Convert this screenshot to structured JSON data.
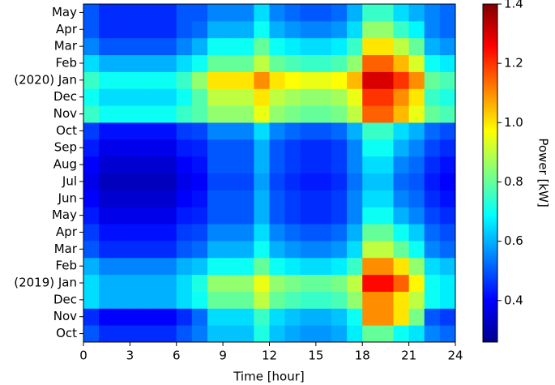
{
  "chart_data": {
    "type": "heatmap",
    "colormap": "jet",
    "xlabel": "Time [hour]",
    "xlim": [
      0,
      24
    ],
    "xticks": [
      0,
      3,
      6,
      9,
      12,
      15,
      18,
      21,
      24
    ],
    "categories": [
      "Oct",
      "Nov",
      "Dec",
      "(2019) Jan",
      "Feb",
      "Mar",
      "Apr",
      "May",
      "Jun",
      "Jul",
      "Aug",
      "Sep",
      "Oct",
      "Nov",
      "Dec",
      "(2020) Jan",
      "Feb",
      "Mar",
      "Apr",
      "May"
    ],
    "colorbar_label": "Power [kW]",
    "zlim": [
      0.26,
      1.4
    ],
    "zticks": [
      0.4,
      0.6,
      0.8,
      {
        "value": 1,
        "label": "1.0"
      },
      1.2,
      1.4
    ],
    "values": [
      [
        0.5,
        0.45,
        0.45,
        0.45,
        0.45,
        0.45,
        0.5,
        0.54,
        0.62,
        0.62,
        0.62,
        0.72,
        0.62,
        0.59,
        0.57,
        0.57,
        0.59,
        0.67,
        0.8,
        0.8,
        0.7,
        0.66,
        0.55,
        0.52
      ],
      [
        0.45,
        0.4,
        0.4,
        0.4,
        0.4,
        0.4,
        0.45,
        0.52,
        0.65,
        0.65,
        0.65,
        0.75,
        0.65,
        0.62,
        0.6,
        0.6,
        0.62,
        0.7,
        1.1,
        1.1,
        1.0,
        0.82,
        0.5,
        0.47
      ],
      [
        0.65,
        0.6,
        0.6,
        0.6,
        0.6,
        0.6,
        0.65,
        0.7,
        0.8,
        0.8,
        0.8,
        0.9,
        0.8,
        0.77,
        0.75,
        0.75,
        0.77,
        0.85,
        1.1,
        1.1,
        1.0,
        0.9,
        0.7,
        0.67
      ],
      [
        0.65,
        0.6,
        0.6,
        0.6,
        0.6,
        0.6,
        0.65,
        0.72,
        0.85,
        0.85,
        0.85,
        0.95,
        0.85,
        0.82,
        0.8,
        0.8,
        0.82,
        0.9,
        1.25,
        1.25,
        1.15,
        0.98,
        0.7,
        0.67
      ],
      [
        0.6,
        0.55,
        0.55,
        0.55,
        0.55,
        0.55,
        0.6,
        0.62,
        0.7,
        0.7,
        0.7,
        0.8,
        0.7,
        0.67,
        0.65,
        0.65,
        0.67,
        0.75,
        1.1,
        1.1,
        1.0,
        0.85,
        0.65,
        0.62
      ],
      [
        0.5,
        0.45,
        0.45,
        0.45,
        0.45,
        0.45,
        0.5,
        0.52,
        0.6,
        0.6,
        0.6,
        0.7,
        0.6,
        0.57,
        0.55,
        0.55,
        0.57,
        0.65,
        0.9,
        0.9,
        0.8,
        0.7,
        0.55,
        0.52
      ],
      [
        0.47,
        0.42,
        0.42,
        0.42,
        0.42,
        0.42,
        0.47,
        0.48,
        0.55,
        0.55,
        0.55,
        0.65,
        0.55,
        0.52,
        0.5,
        0.5,
        0.52,
        0.6,
        0.8,
        0.8,
        0.7,
        0.63,
        0.52,
        0.49
      ],
      [
        0.43,
        0.38,
        0.38,
        0.38,
        0.38,
        0.38,
        0.43,
        0.44,
        0.5,
        0.5,
        0.5,
        0.6,
        0.5,
        0.47,
        0.45,
        0.45,
        0.47,
        0.55,
        0.7,
        0.7,
        0.6,
        0.55,
        0.48,
        0.45
      ],
      [
        0.4,
        0.35,
        0.35,
        0.35,
        0.35,
        0.35,
        0.4,
        0.42,
        0.5,
        0.5,
        0.5,
        0.6,
        0.5,
        0.47,
        0.45,
        0.45,
        0.47,
        0.55,
        0.65,
        0.65,
        0.55,
        0.52,
        0.45,
        0.42
      ],
      [
        0.38,
        0.33,
        0.33,
        0.33,
        0.33,
        0.33,
        0.38,
        0.4,
        0.48,
        0.48,
        0.48,
        0.58,
        0.48,
        0.45,
        0.43,
        0.43,
        0.45,
        0.53,
        0.62,
        0.62,
        0.52,
        0.5,
        0.43,
        0.4
      ],
      [
        0.4,
        0.35,
        0.35,
        0.35,
        0.35,
        0.35,
        0.4,
        0.42,
        0.5,
        0.5,
        0.5,
        0.6,
        0.5,
        0.47,
        0.45,
        0.45,
        0.47,
        0.55,
        0.65,
        0.65,
        0.55,
        0.52,
        0.45,
        0.42
      ],
      [
        0.43,
        0.38,
        0.38,
        0.38,
        0.38,
        0.38,
        0.43,
        0.44,
        0.5,
        0.5,
        0.5,
        0.6,
        0.5,
        0.47,
        0.45,
        0.45,
        0.47,
        0.55,
        0.7,
        0.7,
        0.6,
        0.55,
        0.48,
        0.45
      ],
      [
        0.47,
        0.42,
        0.42,
        0.42,
        0.42,
        0.42,
        0.47,
        0.48,
        0.55,
        0.55,
        0.55,
        0.65,
        0.55,
        0.52,
        0.5,
        0.5,
        0.52,
        0.6,
        0.75,
        0.75,
        0.65,
        0.6,
        0.52,
        0.49
      ],
      [
        0.75,
        0.7,
        0.7,
        0.7,
        0.7,
        0.7,
        0.75,
        0.78,
        0.85,
        0.85,
        0.85,
        0.95,
        0.85,
        0.82,
        0.8,
        0.8,
        0.82,
        0.9,
        1.15,
        1.15,
        1.05,
        0.95,
        0.8,
        0.77
      ],
      [
        0.7,
        0.65,
        0.65,
        0.65,
        0.65,
        0.65,
        0.7,
        0.78,
        0.9,
        0.9,
        0.9,
        1.0,
        0.9,
        0.87,
        0.85,
        0.85,
        0.87,
        0.95,
        1.2,
        1.2,
        1.1,
        1.0,
        0.75,
        0.72
      ],
      [
        0.75,
        0.7,
        0.7,
        0.7,
        0.7,
        0.7,
        0.75,
        0.85,
        1.0,
        1.0,
        1.0,
        1.1,
        1.0,
        0.97,
        0.95,
        0.95,
        0.97,
        1.05,
        1.3,
        1.3,
        1.2,
        1.1,
        0.8,
        0.77
      ],
      [
        0.65,
        0.6,
        0.6,
        0.6,
        0.6,
        0.6,
        0.65,
        0.7,
        0.8,
        0.8,
        0.8,
        0.9,
        0.8,
        0.77,
        0.75,
        0.75,
        0.77,
        0.85,
        1.15,
        1.15,
        1.05,
        0.93,
        0.7,
        0.67
      ],
      [
        0.55,
        0.5,
        0.5,
        0.5,
        0.5,
        0.5,
        0.55,
        0.6,
        0.7,
        0.7,
        0.7,
        0.8,
        0.7,
        0.67,
        0.65,
        0.65,
        0.67,
        0.75,
        1.0,
        1.0,
        0.9,
        0.8,
        0.6,
        0.57
      ],
      [
        0.5,
        0.45,
        0.45,
        0.45,
        0.45,
        0.45,
        0.5,
        0.52,
        0.6,
        0.6,
        0.6,
        0.7,
        0.6,
        0.57,
        0.55,
        0.55,
        0.57,
        0.65,
        0.85,
        0.85,
        0.75,
        0.68,
        0.55,
        0.52
      ],
      [
        0.5,
        0.45,
        0.45,
        0.45,
        0.45,
        0.45,
        0.5,
        0.5,
        0.55,
        0.55,
        0.55,
        0.65,
        0.55,
        0.52,
        0.5,
        0.5,
        0.52,
        0.6,
        0.75,
        0.75,
        0.65,
        0.6,
        0.55,
        0.52
      ]
    ]
  }
}
